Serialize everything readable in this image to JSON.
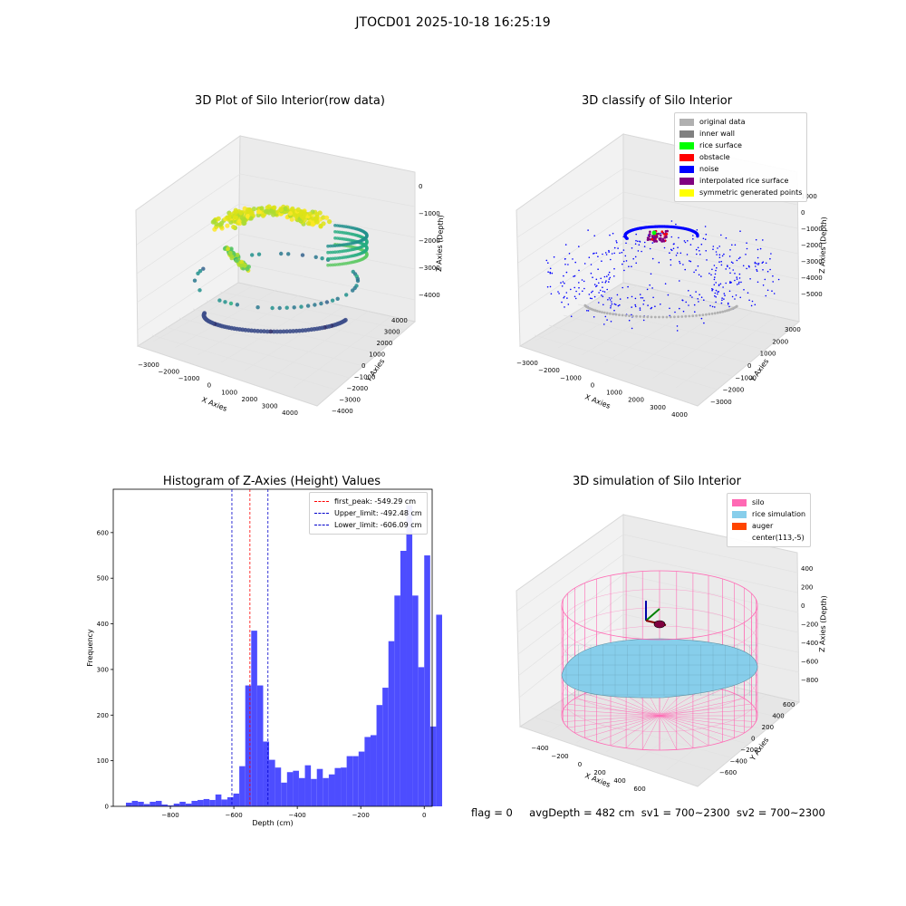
{
  "suptitle": "JTOCD01 2025-10-18 16:25:19",
  "colors": {
    "pane_face": "#f2f2f2",
    "pane_edge": "#d8d8d8",
    "grid": "#e4e4e4",
    "hist_bar": "#4d4dff",
    "first_peak": "#ff0000",
    "limit": "#0000cc",
    "silo": "#ff69b4",
    "rice": "#87ceeb",
    "auger": "#ff4500",
    "original": "#b0b0b0",
    "inner_wall": "#808080",
    "rice_surface": "#00ff00",
    "obstacle": "#ff0000",
    "noise": "#0000ff",
    "interpolated": "#800080",
    "symmetric": "#ffff00"
  },
  "chart_data": [
    {
      "type": "scatter",
      "title": "3D Plot of Silo Interior(row data)",
      "xlabel": "X Axies",
      "ylabel": "Y Axies",
      "zlabel": "Z Axies (Depth)",
      "xticks": [
        "−3000",
        "−2000",
        "−1000",
        "0",
        "1000",
        "2000",
        "3000",
        "4000"
      ],
      "yticks": [
        "−4000",
        "−3000",
        "−2000",
        "−1000",
        "0",
        "1000",
        "2000",
        "3000",
        "4000"
      ],
      "zticks": [
        "−4000",
        "−3000",
        "−2000",
        "−1000",
        "0"
      ]
    },
    {
      "type": "scatter",
      "title": "3D classify of Silo Interior",
      "xlabel": "X Axies",
      "ylabel": "Y Axies",
      "zlabel": "Z Axies (Depth)",
      "xticks": [
        "−3000",
        "−2000",
        "−1000",
        "0",
        "1000",
        "2000",
        "3000",
        "4000"
      ],
      "yticks": [
        "−3000",
        "−2000",
        "−1000",
        "0",
        "1000",
        "2000",
        "3000"
      ],
      "zticks": [
        "−5000",
        "−4000",
        "−3000",
        "−2000",
        "−1000",
        "0",
        "1000"
      ],
      "legend": [
        {
          "label": "original data",
          "color": "#b0b0b0"
        },
        {
          "label": "inner wall",
          "color": "#808080"
        },
        {
          "label": "rice surface",
          "color": "#00ff00"
        },
        {
          "label": "obstacle",
          "color": "#ff0000"
        },
        {
          "label": "noise",
          "color": "#0000ff"
        },
        {
          "label": "interpolated rice surface",
          "color": "#800080"
        },
        {
          "label": "symmetric generated points",
          "color": "#ffff00"
        }
      ]
    },
    {
      "type": "bar",
      "title": "Histogram of Z-Axies (Height) Values",
      "xlabel": "Depth (cm)",
      "ylabel": "Frequency",
      "xlim": [
        -980,
        25
      ],
      "ylim": [
        0,
        695
      ],
      "xticks": [
        -800,
        -600,
        -400,
        -200,
        0
      ],
      "xtick_labels": [
        "−800",
        "−600",
        "−400",
        "−200",
        "0"
      ],
      "yticks": [
        0,
        100,
        200,
        300,
        400,
        500,
        600
      ],
      "bin_start": -940,
      "bin_width": 18.8,
      "values": [
        8,
        12,
        10,
        5,
        10,
        12,
        4,
        2,
        6,
        10,
        6,
        12,
        14,
        16,
        14,
        26,
        15,
        20,
        28,
        88,
        265,
        385,
        265,
        142,
        102,
        85,
        52,
        75,
        78,
        62,
        90,
        60,
        82,
        62,
        70,
        84,
        85,
        110,
        110,
        120,
        152,
        156,
        222,
        260,
        362,
        462,
        560,
        660,
        462,
        305,
        550,
        175,
        420
      ],
      "vlines": [
        {
          "label": "first_peak: -549.29 cm",
          "x": -549.29,
          "color": "#ff0000"
        },
        {
          "label": "Upper_limit: -492.48 cm",
          "x": -492.48,
          "color": "#0000cc"
        },
        {
          "label": "Lower_limit: -606.09 cm",
          "x": -606.09,
          "color": "#0000cc"
        }
      ]
    },
    {
      "type": "other",
      "title": "3D simulation of Silo Interior",
      "xlabel": "X Axies",
      "ylabel": "Y Axies",
      "zlabel": "Z Axies (Depth)",
      "xticks": [
        "−400",
        "−200",
        "0",
        "200",
        "400",
        "600"
      ],
      "yticks": [
        "−600",
        "−400",
        "−200",
        "0",
        "200",
        "400",
        "600"
      ],
      "zticks": [
        "−800",
        "−600",
        "−400",
        "−200",
        "0",
        "200",
        "400"
      ],
      "legend": [
        {
          "label": "silo",
          "color": "#ff69b4"
        },
        {
          "label": "rice simulation",
          "color": "#87ceeb"
        },
        {
          "label": "auger",
          "color": "#ff4500"
        },
        {
          "label": "center(113,-5)",
          "color": ""
        }
      ]
    }
  ],
  "status": {
    "flag": "flag = 0",
    "avg_depth": "avgDepth = 482 cm",
    "sv1": "sv1 = 700~2300",
    "sv2": "sv2 = 700~2300"
  }
}
